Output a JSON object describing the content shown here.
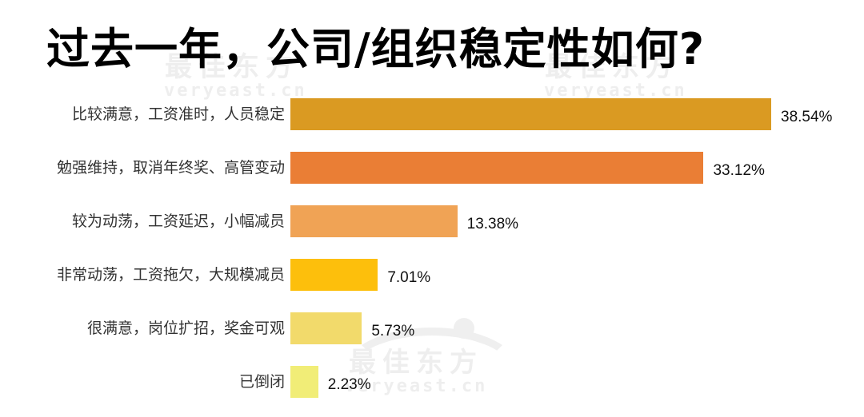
{
  "title": "过去一年，公司/组织稳定性如何?",
  "watermark": {
    "cn": "最佳东方",
    "en": "veryeast.cn"
  },
  "chart_data": {
    "type": "bar",
    "orientation": "horizontal",
    "title": "过去一年，公司/组织稳定性如何?",
    "xlabel": "",
    "ylabel": "",
    "grid": false,
    "legend": null,
    "categories": [
      "比较满意，工资准时，人员稳定",
      "勉强维持，取消年终奖、高管变动",
      "较为动荡，工资延迟，小幅减员",
      "非常动荡，工资拖欠，大规模减员",
      "很满意，岗位扩招，奖金可观",
      "已倒闭"
    ],
    "values": [
      38.54,
      33.12,
      13.38,
      7.01,
      5.73,
      2.23
    ],
    "value_labels": [
      "38.54%",
      "33.12%",
      "13.38%",
      "7.01%",
      "5.73%",
      "2.23%"
    ],
    "colors": [
      "#DA9A22",
      "#EA7E35",
      "#F0A355",
      "#FDBF0C",
      "#F2DA6B",
      "#F1ED77"
    ],
    "unit": "%"
  },
  "rows": [
    {
      "label": "比较满意，工资准时，人员稳定",
      "value": "38.54%"
    },
    {
      "label": "勉强维持，取消年终奖、高管变动",
      "value": "33.12%"
    },
    {
      "label": "较为动荡，工资延迟，小幅减员",
      "value": "13.38%"
    },
    {
      "label": "非常动荡，工资拖欠，大规模减员",
      "value": "7.01%"
    },
    {
      "label": "很满意，岗位扩招，奖金可观",
      "value": "5.73%"
    },
    {
      "label": "已倒闭",
      "value": "2.23%"
    }
  ]
}
